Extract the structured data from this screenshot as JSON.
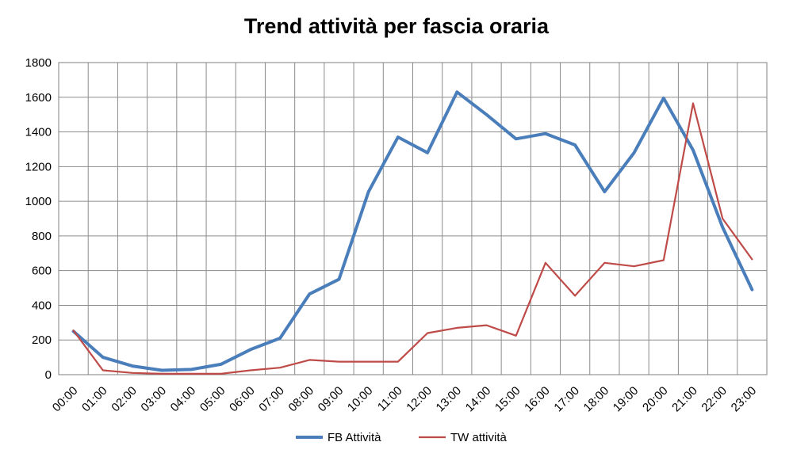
{
  "chart_data": {
    "type": "line",
    "title": "Trend attività per fascia oraria",
    "xlabel": "",
    "ylabel": "",
    "ylim": [
      0,
      1800
    ],
    "yticks": [
      0,
      200,
      400,
      600,
      800,
      1000,
      1200,
      1400,
      1600,
      1800
    ],
    "grid": true,
    "legend_position": "bottom",
    "categories": [
      "00:00",
      "01:00",
      "02:00",
      "03:00",
      "04:00",
      "05:00",
      "06:00",
      "07:00",
      "08:00",
      "09:00",
      "10:00",
      "11:00",
      "12:00",
      "13:00",
      "14:00",
      "15:00",
      "16:00",
      "17:00",
      "18:00",
      "19:00",
      "20:00",
      "21:00",
      "22:00",
      "23:00"
    ],
    "series": [
      {
        "name": "FB Attività",
        "color": "#4a7ebb",
        "values": [
          250,
          100,
          50,
          25,
          30,
          60,
          145,
          210,
          465,
          550,
          1055,
          1370,
          1280,
          1630,
          1500,
          1360,
          1390,
          1325,
          1055,
          1280,
          1595,
          1295,
          850,
          490
        ]
      },
      {
        "name": "TW attività",
        "color": "#be4b48",
        "values": [
          255,
          25,
          10,
          5,
          5,
          5,
          25,
          40,
          85,
          75,
          75,
          75,
          240,
          270,
          285,
          225,
          645,
          455,
          645,
          625,
          660,
          1565,
          900,
          665
        ]
      }
    ]
  }
}
